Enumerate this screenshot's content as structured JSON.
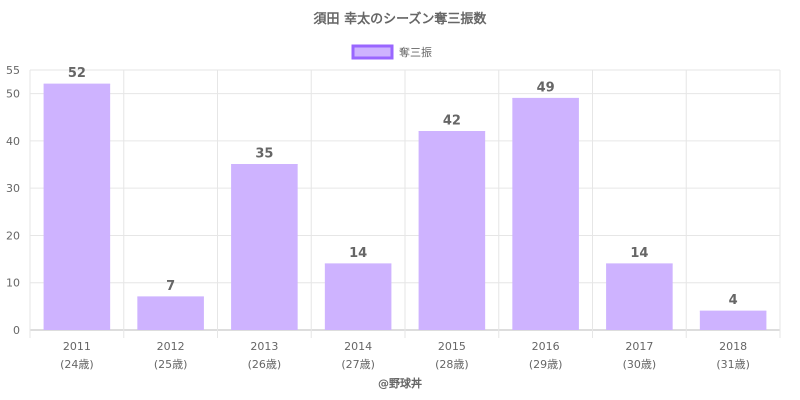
{
  "chart_data": {
    "type": "bar",
    "title": "須田 幸太のシーズン奪三振数",
    "categories": [
      "2011",
      "2012",
      "2013",
      "2014",
      "2015",
      "2016",
      "2017",
      "2018"
    ],
    "category_sublabels": [
      "(24歳)",
      "(25歳)",
      "(26歳)",
      "(27歳)",
      "(28歳)",
      "(29歳)",
      "(30歳)",
      "(31歳)"
    ],
    "series": [
      {
        "name": "奪三振",
        "values": [
          52,
          7,
          35,
          14,
          42,
          49,
          14,
          4
        ]
      }
    ],
    "y_ticks": [
      0,
      10,
      20,
      30,
      40,
      50,
      55
    ],
    "ylim": [
      0,
      55
    ],
    "grid": true,
    "legend_position": "top-center",
    "show_data_labels": true,
    "colors": {
      "bar_fill": "#ceb3ff",
      "bar_stroke": "#9966ff",
      "text": "#666666",
      "grid": "#e6e6e6"
    }
  },
  "credit": "@野球丼"
}
